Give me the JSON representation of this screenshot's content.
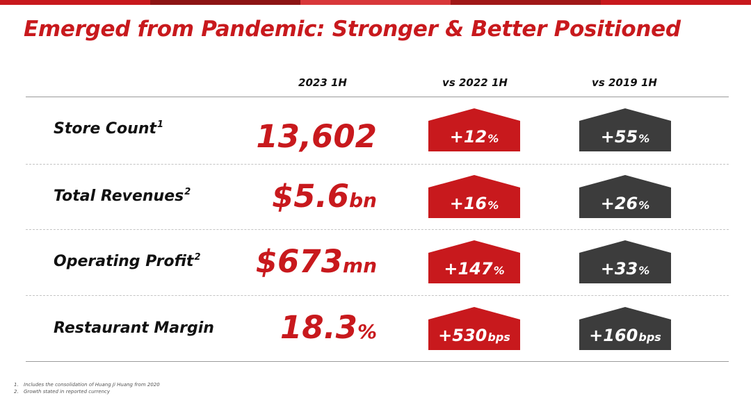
{
  "colors": {
    "brand_red": "#c8191d",
    "dark_gray": "#3c3c3c",
    "top_bar": [
      "#c8191d",
      "#8c1414",
      "#d8383a",
      "#a01818",
      "#c8191d"
    ]
  },
  "title": "Emerged from Pandemic: Stronger & Better Positioned",
  "columns": [
    "2023 1H",
    "vs 2022 1H",
    "vs 2019 1H"
  ],
  "rows": [
    {
      "label": "Store Count",
      "note": "1",
      "value": "13,602",
      "value_unit": "",
      "vs_2022": {
        "value": "+12",
        "unit": "%"
      },
      "vs_2019": {
        "value": "+55",
        "unit": "%"
      }
    },
    {
      "label": "Total Revenues",
      "note": "2",
      "value": "$5.6",
      "value_unit": "bn",
      "vs_2022": {
        "value": "+16",
        "unit": "%"
      },
      "vs_2019": {
        "value": "+26",
        "unit": "%"
      }
    },
    {
      "label": "Operating Profit",
      "note": "2",
      "value": "$673",
      "value_unit": "mn",
      "vs_2022": {
        "value": "+147",
        "unit": "%"
      },
      "vs_2019": {
        "value": "+33",
        "unit": "%"
      }
    },
    {
      "label": "Restaurant Margin",
      "note": "",
      "value": "18.3",
      "value_unit": "%",
      "vs_2022": {
        "value": "+530",
        "unit": "bps"
      },
      "vs_2019": {
        "value": "+160",
        "unit": "bps"
      }
    }
  ],
  "footnotes": [
    {
      "num": "1.",
      "text": "Includes the consolidation of Huang Ji Huang from 2020"
    },
    {
      "num": "2.",
      "text": "Growth stated in reported currency"
    }
  ]
}
